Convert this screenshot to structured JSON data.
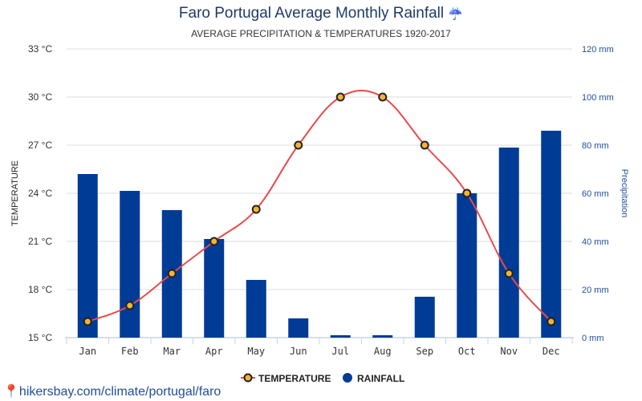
{
  "chart_data": {
    "type": "bar+line",
    "title": "Faro Portugal Average Monthly Rainfall",
    "title_icon": "umbrella-rain-icon",
    "subtitle": "AVERAGE PRECIPITATION & TEMPERATURES 1920-2017",
    "categories": [
      "Jan",
      "Feb",
      "Mar",
      "Apr",
      "May",
      "Jun",
      "Jul",
      "Aug",
      "Sep",
      "Oct",
      "Nov",
      "Dec"
    ],
    "series": [
      {
        "name": "TEMPERATURE",
        "type": "line",
        "axis": "left",
        "color": "#e84b4b",
        "marker_color": "#f5b335",
        "values": [
          16,
          17,
          19,
          21,
          23,
          27,
          30,
          30,
          27,
          24,
          19,
          16
        ]
      },
      {
        "name": "RAINFALL",
        "type": "bar",
        "axis": "right",
        "color": "#003c96",
        "values": [
          68,
          61,
          53,
          41,
          24,
          8,
          1,
          1,
          17,
          60,
          79,
          86
        ]
      }
    ],
    "ylabel_left": "TEMPERATURE",
    "ylabel_right": "Precipitation",
    "ylim_left": [
      15,
      33
    ],
    "ylim_right": [
      0,
      120
    ],
    "left_ticks": [
      "15 °C",
      "18 °C",
      "21 °C",
      "24 °C",
      "27 °C",
      "30 °C",
      "33 °C"
    ],
    "right_ticks": [
      "0 mm",
      "20 mm",
      "40 mm",
      "60 mm",
      "80 mm",
      "100 mm",
      "120 mm"
    ],
    "grid": true,
    "legend_position": "bottom"
  },
  "footer": {
    "link": "hikersbay.com/climate/portugal/faro",
    "icon": "location-pin-icon"
  }
}
